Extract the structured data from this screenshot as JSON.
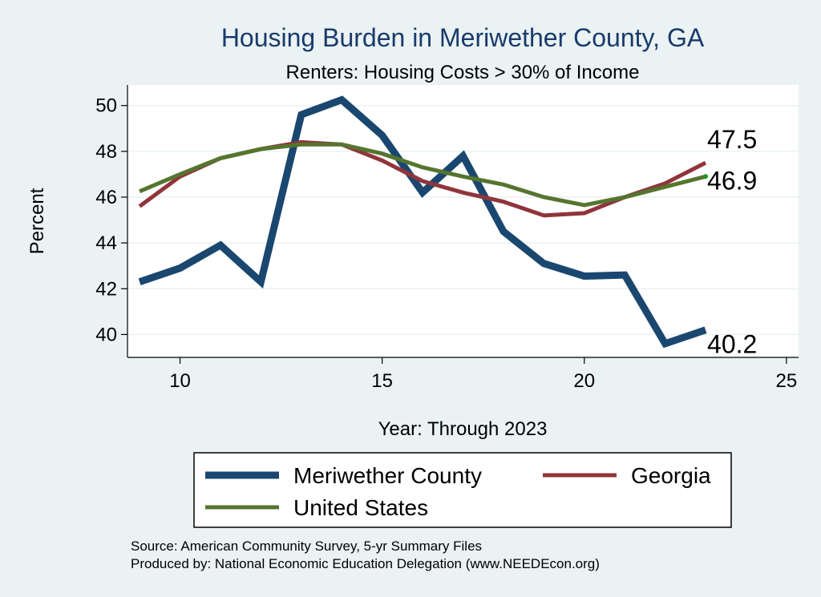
{
  "chart_data": {
    "type": "line",
    "title": "Housing Burden in Meriwether County, GA",
    "subtitle": "Renters: Housing Costs > 30% of Income",
    "xlabel": "Year: Through 2023",
    "ylabel": "Percent",
    "xlim": [
      8.7,
      25.3
    ],
    "ylim": [
      39.0,
      50.9
    ],
    "xticks": [
      10,
      15,
      20,
      25
    ],
    "yticks": [
      40,
      42,
      44,
      46,
      48,
      50
    ],
    "grid": true,
    "x": [
      9,
      10,
      11,
      12,
      13,
      14,
      15,
      16,
      17,
      18,
      19,
      20,
      21,
      22,
      23
    ],
    "series": [
      {
        "name": "Meriwether County",
        "color": "#1a476f",
        "values": [
          42.3,
          42.9,
          43.9,
          42.3,
          49.6,
          50.25,
          48.7,
          46.2,
          47.8,
          44.5,
          43.1,
          42.55,
          42.6,
          39.6,
          40.2
        ],
        "end_label": "40.2"
      },
      {
        "name": "Georgia",
        "color": "#90353b",
        "values": [
          45.6,
          46.9,
          47.7,
          48.1,
          48.4,
          48.3,
          47.6,
          46.7,
          46.2,
          45.8,
          45.2,
          45.3,
          46.0,
          46.6,
          47.5
        ],
        "end_label": "47.5"
      },
      {
        "name": "United States",
        "color": "#55752f",
        "values": [
          46.25,
          47.0,
          47.7,
          48.1,
          48.3,
          48.3,
          47.9,
          47.3,
          46.9,
          46.55,
          46.0,
          45.65,
          46.0,
          46.45,
          46.9
        ],
        "end_label": "46.9"
      }
    ],
    "legend": {
      "placement": "bottom",
      "entries": [
        "Meriwether County",
        "Georgia",
        "United States"
      ]
    },
    "notes": [
      "Source: American Community Survey, 5-yr Summary Files",
      "Produced by: National Economic Education Delegation (www.NEEDEcon.org)"
    ]
  }
}
